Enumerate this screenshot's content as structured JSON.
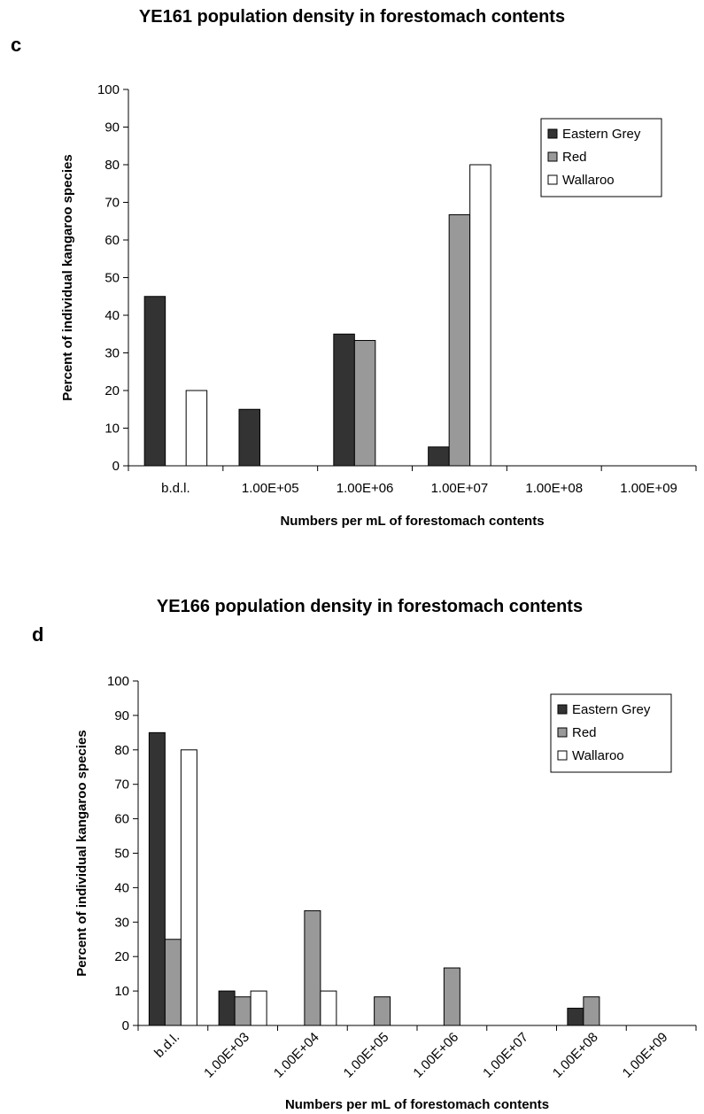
{
  "chart_data": [
    {
      "type": "bar",
      "panel_label": "c",
      "title": "YE161 population density in forestomach contents",
      "xlabel": "Numbers per mL of forestomach contents",
      "ylabel": "Percent of individual kangaroo species",
      "ylim": [
        0,
        100
      ],
      "yticks": [
        0,
        10,
        20,
        30,
        40,
        50,
        60,
        70,
        80,
        90,
        100
      ],
      "categories": [
        "b.d.l.",
        "1.00E+05",
        "1.00E+06",
        "1.00E+07",
        "1.00E+08",
        "1.00E+09"
      ],
      "legend_position": "top-right",
      "series": [
        {
          "name": "Eastern Grey",
          "color": "#333333",
          "values": [
            45,
            15,
            35,
            5,
            0,
            0
          ]
        },
        {
          "name": "Red",
          "color": "#999999",
          "values": [
            0,
            0,
            33.3,
            66.7,
            0,
            0
          ]
        },
        {
          "name": "Wallaroo",
          "color": "#ffffff",
          "values": [
            20,
            0,
            0,
            80,
            0,
            0
          ]
        }
      ]
    },
    {
      "type": "bar",
      "panel_label": "d",
      "title": "YE166 population density in forestomach contents",
      "xlabel": "Numbers per mL of forestomach contents",
      "ylabel": "Percent of individual kangaroo species",
      "ylim": [
        0,
        100
      ],
      "yticks": [
        0,
        10,
        20,
        30,
        40,
        50,
        60,
        70,
        80,
        90,
        100
      ],
      "categories": [
        "b.d.l.",
        "1.00E+03",
        "1.00E+04",
        "1.00E+05",
        "1.00E+06",
        "1.00E+07",
        "1.00E+08",
        "1.00E+09"
      ],
      "legend_position": "top-right",
      "series": [
        {
          "name": "Eastern Grey",
          "color": "#333333",
          "values": [
            85,
            10,
            0,
            0,
            0,
            0,
            5,
            0
          ]
        },
        {
          "name": "Red",
          "color": "#999999",
          "values": [
            25,
            8.3,
            33.3,
            8.3,
            16.7,
            0,
            8.3,
            0
          ]
        },
        {
          "name": "Wallaroo",
          "color": "#ffffff",
          "values": [
            80,
            10,
            10,
            0,
            0,
            0,
            0,
            0
          ]
        }
      ]
    }
  ]
}
